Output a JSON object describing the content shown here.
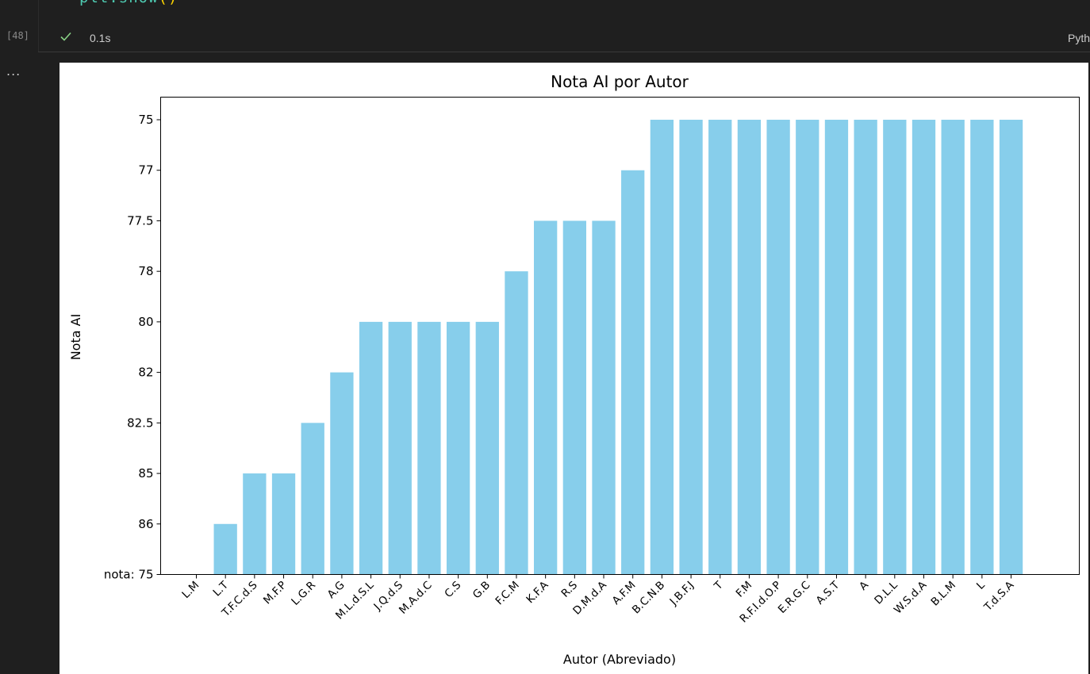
{
  "cell": {
    "code_tail": "plt.show",
    "code_tail_parens": "()",
    "exec_count": "[48]",
    "exec_time": "0.1s",
    "language": "Pyth",
    "output_marker": "..."
  },
  "colors": {
    "bar": "#87ceeb",
    "check": "#89d185",
    "editor_bg": "#1f1f1f"
  },
  "chart_data": {
    "type": "bar",
    "title": "Nota AI por Autor",
    "xlabel": "Autor (Abreviado)",
    "ylabel": "Nota AI",
    "y_axis": "categorical",
    "y_categories": [
      "nota: 75",
      "86",
      "85",
      "82.5",
      "82",
      "80",
      "78",
      "77.5",
      "77",
      "75"
    ],
    "categories": [
      "L.M",
      "L.T",
      "T.F.C.d.S",
      "M.F.P",
      "L.G.R",
      "A.G",
      "M.L.d.S.L",
      "J.Q.d.S",
      "M.A.d.C",
      "C.S",
      "G.B",
      "F.C.M",
      "K.F.A",
      "R.S",
      "D.M.d.A",
      "A.F.M",
      "B.C.N.B",
      "J.B.F.J",
      "T",
      "F.M",
      "R.F.I.d.O.P",
      "E.R.G.C",
      "A.S.T",
      "A",
      "D.L.L",
      "W.S.d.A",
      "B.L.M",
      "L",
      "T.d.S.A"
    ],
    "values": [
      "nota: 75",
      "86",
      "85",
      "85",
      "82.5",
      "82",
      "80",
      "80",
      "80",
      "80",
      "80",
      "78",
      "77.5",
      "77.5",
      "77.5",
      "77",
      "75",
      "75",
      "75",
      "75",
      "75",
      "75",
      "75",
      "75",
      "75",
      "75",
      "75",
      "75",
      "75"
    ]
  }
}
